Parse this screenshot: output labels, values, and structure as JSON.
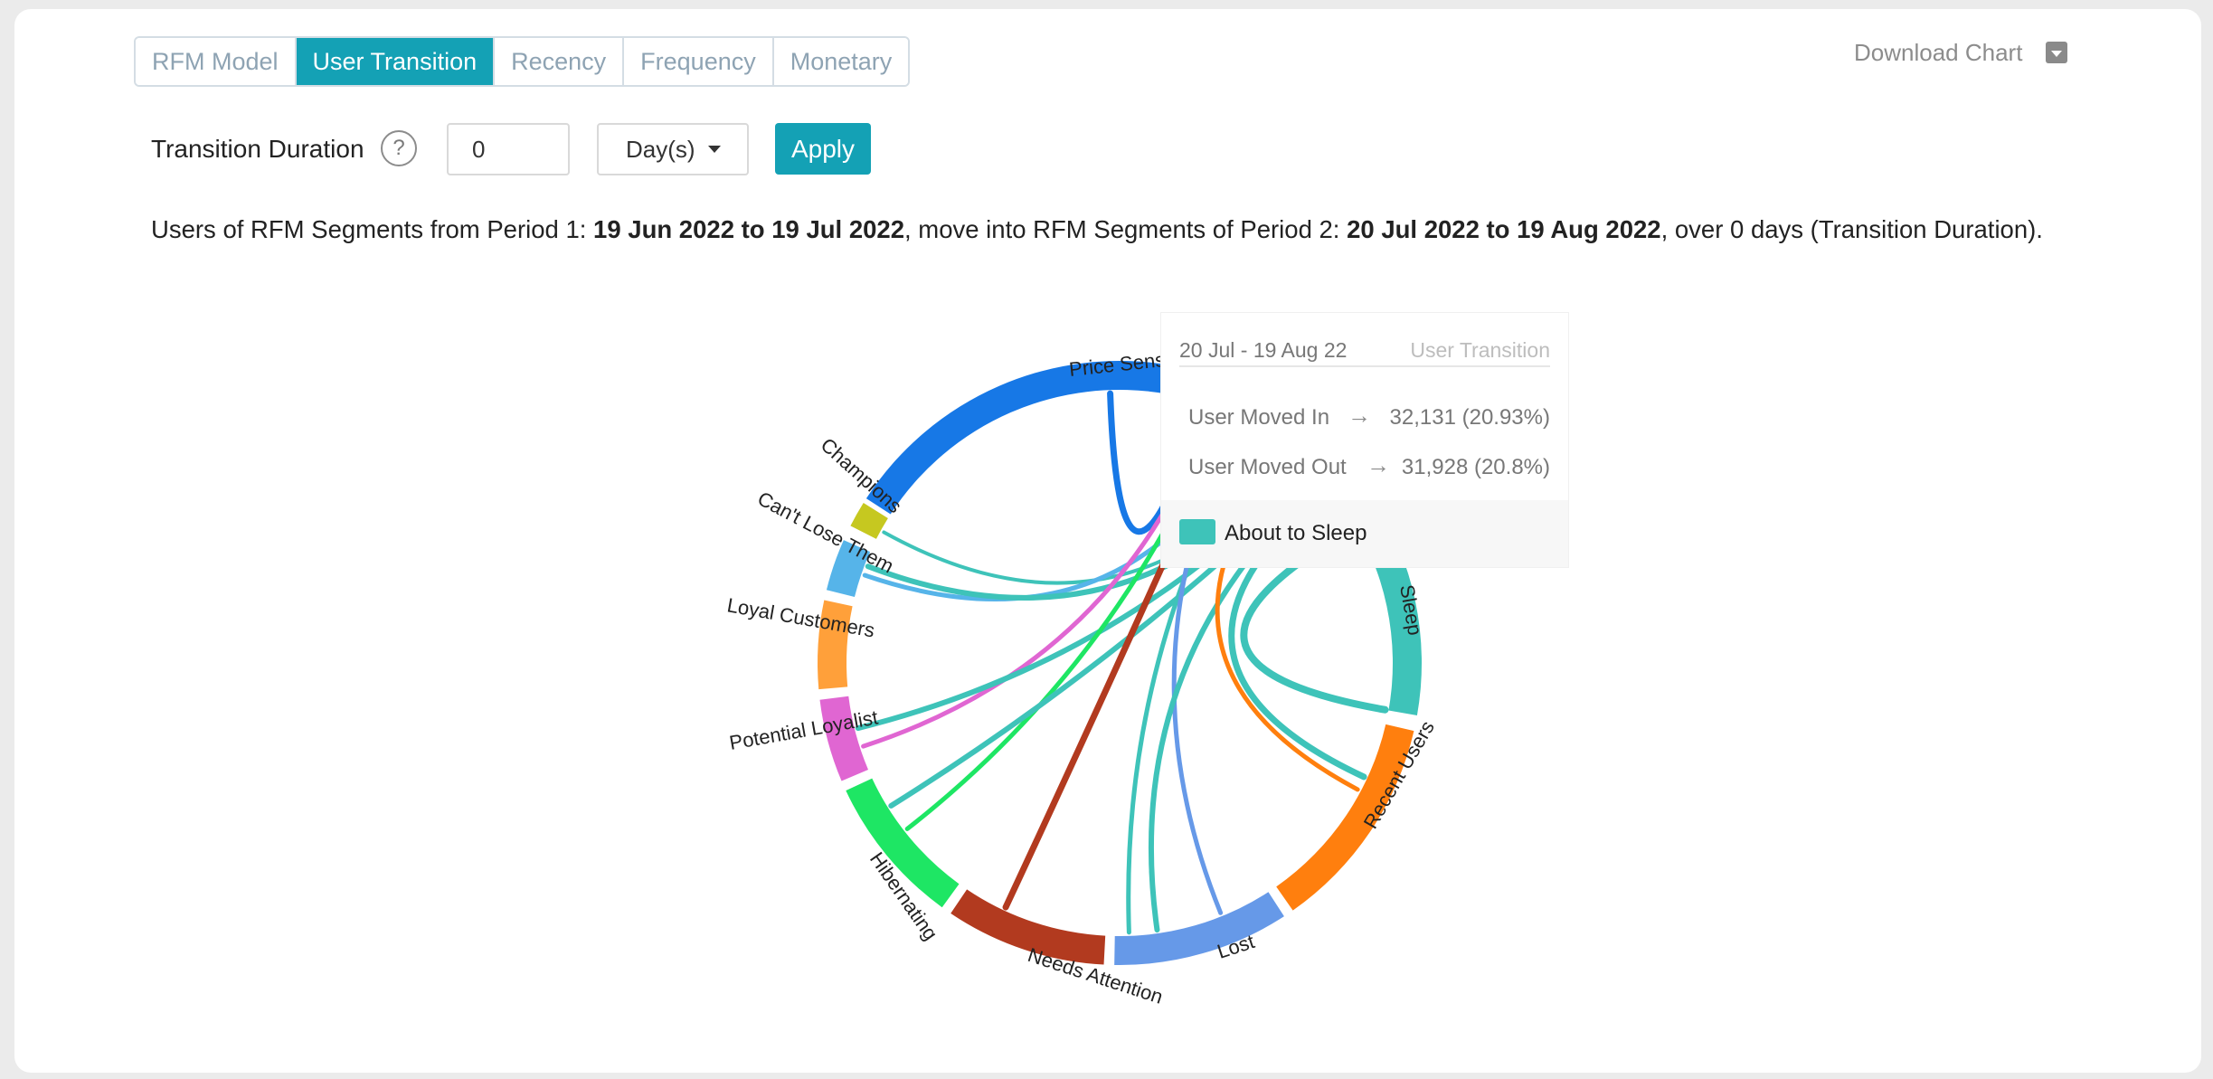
{
  "tabs": [
    {
      "label": "RFM Model",
      "active": false
    },
    {
      "label": "User Transition",
      "active": true
    },
    {
      "label": "Recency",
      "active": false
    },
    {
      "label": "Frequency",
      "active": false
    },
    {
      "label": "Monetary",
      "active": false
    }
  ],
  "download": {
    "label": "Download Chart",
    "icon": "caret-down-icon"
  },
  "controls": {
    "duration_label": "Transition Duration",
    "help_symbol": "?",
    "duration_value": "0",
    "unit_selected": "Day(s)",
    "apply_label": "Apply"
  },
  "description": {
    "prefix": "Users of RFM Segments from Period 1: ",
    "period1": "19 Jun 2022 to 19 Jul 2022",
    "middle": ", move into RFM Segments of Period 2: ",
    "period2": "20 Jul 2022 to 19 Aug 2022",
    "suffix": ", over 0 days (Transition Duration)."
  },
  "chart_data": {
    "type": "chord",
    "segments": [
      {
        "name": "Price Sensitive",
        "color": "#1778e6"
      },
      {
        "name": "About to Sleep",
        "color": "#3ec3b9"
      },
      {
        "name": "Recent Users",
        "color": "#ff7f0e"
      },
      {
        "name": "Lost",
        "color": "#6699e8"
      },
      {
        "name": "Needs Attention",
        "color": "#b23a1f"
      },
      {
        "name": "Hibernating",
        "color": "#1ee664"
      },
      {
        "name": "Potential Loyalist",
        "color": "#e066d2"
      },
      {
        "name": "Loyal Customers",
        "color": "#ffa03a"
      },
      {
        "name": "Can't Lose Them",
        "color": "#56b4e9"
      },
      {
        "name": "Champions",
        "color": "#c6c820"
      }
    ],
    "visible_labels": {
      "About to Sleep": "Sleep"
    }
  },
  "tooltip": {
    "date_range": "20 Jul - 19 Aug 22",
    "type": "User Transition",
    "moved_in_label": "User Moved In",
    "moved_in_value": "32,131 (20.93%)",
    "moved_out_label": "User Moved Out",
    "moved_out_value": "31,928 (20.8%)",
    "segment": "About to Sleep",
    "arrow": "→"
  }
}
